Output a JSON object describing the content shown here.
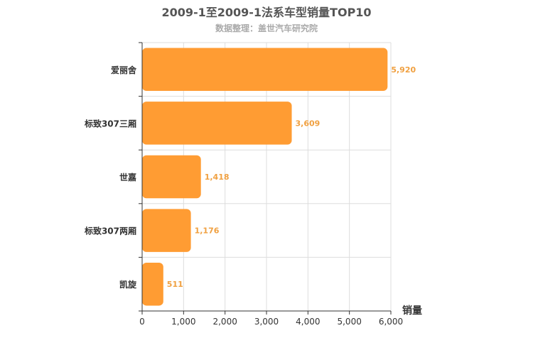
{
  "chart_data": {
    "type": "bar",
    "orientation": "horizontal",
    "title": "2009-1至2009-1法系车型销量TOP10",
    "subtitle": "数据整理：盖世汽车研究院",
    "categories": [
      "爱丽舍",
      "标致307三厢",
      "世嘉",
      "标致307两厢",
      "凯旋"
    ],
    "values": [
      5920,
      3609,
      1418,
      1176,
      511
    ],
    "value_labels": [
      "5,920",
      "3,609",
      "1,418",
      "1,176",
      "511"
    ],
    "xlabel": "销量",
    "ylabel": "",
    "xlim": [
      0,
      6000
    ],
    "xticks": [
      0,
      1000,
      2000,
      3000,
      4000,
      5000,
      6000
    ],
    "xtick_labels": [
      "0",
      "1,000",
      "2,000",
      "3,000",
      "4,000",
      "5,000",
      "6,000"
    ],
    "grid": true,
    "legend": "none",
    "colors": {
      "bar": "#ff9c33",
      "label": "#f0a040",
      "title": "#555555",
      "subtitle": "#aaaaaa",
      "grid": "#dddddd",
      "axis": "#333333"
    }
  }
}
